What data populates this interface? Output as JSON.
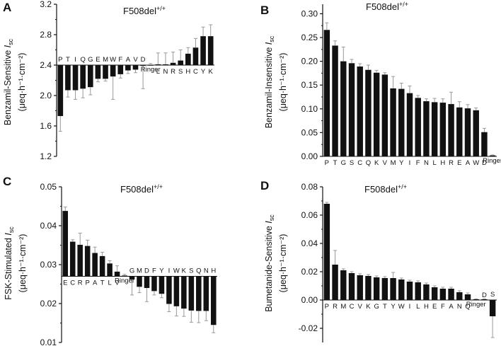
{
  "figure": {
    "name": "F508del Isc multi-panel bar chart"
  },
  "chart_data": [
    {
      "id": "A",
      "panel_label": "A",
      "type": "bar",
      "title": "F508del",
      "title_superscript": "+/+",
      "ylabel": {
        "line1_prefix": "Benzamil-Sensitive ",
        "line1_italic": "I",
        "line1_sub": "sc",
        "line2": "(μeq·h⁻¹·cm⁻²)"
      },
      "xlabel": "",
      "ylim": [
        1.2,
        3.2
      ],
      "baseline": 2.4,
      "yticks": [
        1.2,
        1.6,
        2.0,
        2.4,
        2.8,
        3.2
      ],
      "ytick_labels": [
        "1.2",
        "1.6",
        "2.0",
        "2.4",
        "2.8",
        "3.2"
      ],
      "categories": [
        "P",
        "T",
        "I",
        "Q",
        "G",
        "E",
        "M",
        "W",
        "F",
        "A",
        "V",
        "D",
        "Ringer",
        "L",
        "N",
        "R",
        "S",
        "H",
        "C",
        "Y",
        "K"
      ],
      "values": [
        1.73,
        2.07,
        2.07,
        2.09,
        2.11,
        2.22,
        2.22,
        2.25,
        2.28,
        2.33,
        2.34,
        2.39,
        2.4,
        2.41,
        2.41,
        2.43,
        2.46,
        2.55,
        2.63,
        2.78,
        2.78
      ],
      "errors": [
        0.2,
        0.09,
        0.12,
        0.12,
        0.1,
        0.04,
        0.03,
        0.3,
        0.05,
        0.04,
        0.04,
        0.3,
        0.02,
        0.15,
        0.15,
        0.14,
        0.14,
        0.08,
        0.12,
        0.12,
        0.15
      ]
    },
    {
      "id": "B",
      "panel_label": "B",
      "type": "bar",
      "title": "F508del",
      "title_superscript": "+/+",
      "ylabel": {
        "line1_prefix": "Benzamil-Insensitive ",
        "line1_italic": "I",
        "line1_sub": "sc",
        "line2": "(μeq·h⁻¹·cm⁻²)"
      },
      "xlabel": "",
      "ylim": [
        0.0,
        0.32
      ],
      "baseline": 0.0,
      "yticks": [
        0.0,
        0.05,
        0.1,
        0.15,
        0.2,
        0.25,
        0.3
      ],
      "ytick_labels": [
        "0.00",
        "0.05",
        "0.10",
        "0.15",
        "0.20",
        "0.25",
        "0.30"
      ],
      "categories": [
        "P",
        "T",
        "G",
        "S",
        "C",
        "Q",
        "K",
        "V",
        "M",
        "Y",
        "I",
        "F",
        "N",
        "L",
        "H",
        "R",
        "E",
        "A",
        "W",
        "D",
        "Ringer"
      ],
      "values": [
        0.266,
        0.233,
        0.2,
        0.196,
        0.189,
        0.182,
        0.176,
        0.172,
        0.143,
        0.142,
        0.133,
        0.123,
        0.116,
        0.114,
        0.113,
        0.11,
        0.103,
        0.101,
        0.097,
        0.051,
        0.002
      ],
      "errors": [
        0.015,
        0.01,
        0.03,
        0.008,
        0.006,
        0.01,
        0.005,
        0.004,
        0.025,
        0.012,
        0.015,
        0.005,
        0.005,
        0.008,
        0.008,
        0.025,
        0.012,
        0.008,
        0.005,
        0.008,
        0.001
      ]
    },
    {
      "id": "C",
      "panel_label": "C",
      "type": "bar",
      "title": "F508del",
      "title_superscript": "+/+",
      "ylabel": {
        "line1_prefix": "FSK-Stimulated ",
        "line1_italic": "I",
        "line1_sub": "sc",
        "line2": "(μeq·h⁻¹·cm⁻²)"
      },
      "xlabel": "",
      "ylim": [
        0.01,
        0.05
      ],
      "baseline": 0.027,
      "yticks": [
        0.01,
        0.02,
        0.03,
        0.04,
        0.05
      ],
      "ytick_labels": [
        "0.01",
        "0.02",
        "0.03",
        "0.04",
        "0.05"
      ],
      "categories": [
        "E",
        "C",
        "R",
        "P",
        "A",
        "T",
        "L",
        "V",
        "Ringer",
        "G",
        "M",
        "D",
        "F",
        "Y",
        "I",
        "W",
        "K",
        "S",
        "Q",
        "N",
        "H"
      ],
      "values": [
        0.0438,
        0.0359,
        0.0351,
        0.0348,
        0.033,
        0.0322,
        0.0303,
        0.0282,
        0.0272,
        0.0262,
        0.0243,
        0.024,
        0.0232,
        0.0225,
        0.0199,
        0.0193,
        0.0187,
        0.0182,
        0.0181,
        0.0181,
        0.0145
      ],
      "errors": [
        0.001,
        0.0005,
        0.003,
        0.0015,
        0.0015,
        0.001,
        0.0007,
        0.0015,
        0.0003,
        0.004,
        0.0015,
        0.0035,
        0.001,
        0.001,
        0.002,
        0.0025,
        0.002,
        0.003,
        0.003,
        0.0025,
        0.002
      ]
    },
    {
      "id": "D",
      "panel_label": "D",
      "type": "bar",
      "title": "F508del",
      "title_superscript": "+/+",
      "ylabel": {
        "line1_prefix": "Bumetanide-Sensitive ",
        "line1_italic": "I",
        "line1_sub": "sc",
        "line2": "(μeq·h⁻¹·cm⁻²)"
      },
      "xlabel": "",
      "ylim": [
        -0.03,
        0.08
      ],
      "baseline": 0.0,
      "yticks": [
        -0.02,
        0.0,
        0.02,
        0.04,
        0.06,
        0.08
      ],
      "ytick_labels": [
        "-0.02",
        "0.00",
        "0.02",
        "0.04",
        "0.06",
        "0.08"
      ],
      "categories": [
        "P",
        "R",
        "M",
        "C",
        "V",
        "K",
        "G",
        "T",
        "Y",
        "W",
        "I",
        "L",
        "H",
        "E",
        "F",
        "A",
        "N",
        "Q",
        "Ringer",
        "D",
        "S"
      ],
      "values": [
        0.068,
        0.025,
        0.021,
        0.019,
        0.0175,
        0.017,
        0.016,
        0.0155,
        0.0155,
        0.0145,
        0.013,
        0.0125,
        0.011,
        0.009,
        0.008,
        0.008,
        0.0055,
        0.004,
        0.0005,
        0.0005,
        -0.0115
      ],
      "errors": [
        0.001,
        0.01,
        0.001,
        0.001,
        0.001,
        0.001,
        0.001,
        0.001,
        0.004,
        0.001,
        0.001,
        0.001,
        0.001,
        0.001,
        0.001,
        0.001,
        0.001,
        0.001,
        0.0003,
        0.0003,
        0.015
      ]
    }
  ]
}
